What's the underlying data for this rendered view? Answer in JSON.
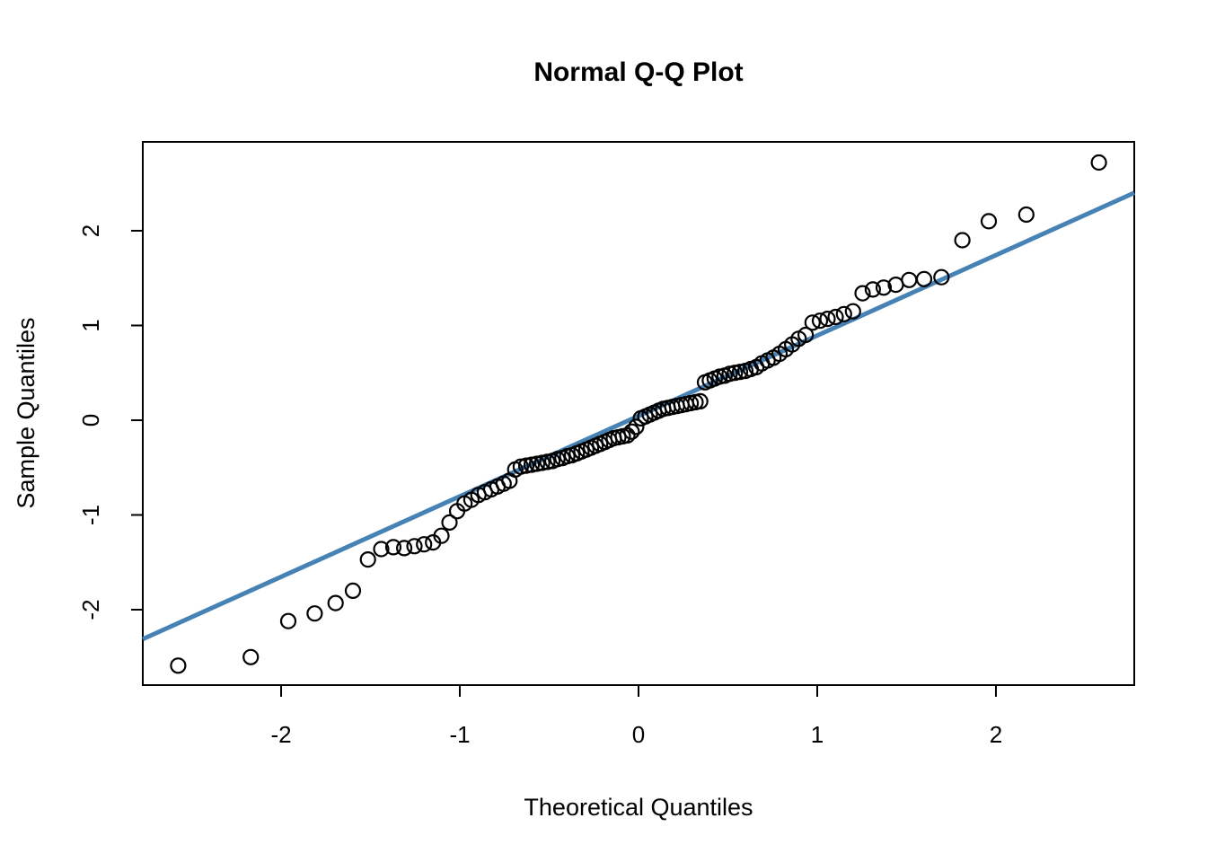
{
  "figure": {
    "title": "Normal Q-Q Plot",
    "x_axis": {
      "label": "Theoretical Quantiles",
      "tick_labels": [
        "-2",
        "-1",
        "0",
        "1",
        "2"
      ]
    },
    "y_axis": {
      "label": "Sample Quantiles",
      "tick_labels": [
        "-2",
        "-1",
        "0",
        "1",
        "2"
      ]
    },
    "colors": {
      "background": "#FFFFFF",
      "axis": "#000000",
      "marker_stroke": "#000000",
      "reference_line": "#4682B4"
    }
  },
  "chart_data": {
    "type": "scatter",
    "title": "Normal Q-Q Plot",
    "xlabel": "Theoretical Quantiles",
    "ylabel": "Sample Quantiles",
    "xlim": [
      -2.774,
      2.774
    ],
    "ylim": [
      -2.796,
      2.938
    ],
    "x_ticks": [
      -2,
      -1,
      0,
      1,
      2
    ],
    "y_ticks": [
      -2,
      -1,
      0,
      1,
      2
    ],
    "grid": false,
    "legend": null,
    "marker": "open-circle",
    "n_points": 100,
    "points": [
      [
        -2.576,
        -2.59
      ],
      [
        -2.17,
        -2.5
      ],
      [
        -1.96,
        -2.12
      ],
      [
        -1.812,
        -2.04
      ],
      [
        -1.695,
        -1.93
      ],
      [
        -1.598,
        -1.8
      ],
      [
        -1.514,
        -1.47
      ],
      [
        -1.44,
        -1.36
      ],
      [
        -1.372,
        -1.34
      ],
      [
        -1.311,
        -1.35
      ],
      [
        -1.254,
        -1.33
      ],
      [
        -1.2,
        -1.31
      ],
      [
        -1.15,
        -1.29
      ],
      [
        -1.103,
        -1.22
      ],
      [
        -1.058,
        -1.08
      ],
      [
        -1.015,
        -0.96
      ],
      [
        -0.974,
        -0.88
      ],
      [
        -0.935,
        -0.84
      ],
      [
        -0.896,
        -0.79
      ],
      [
        -0.86,
        -0.76
      ],
      [
        -0.824,
        -0.73
      ],
      [
        -0.789,
        -0.7
      ],
      [
        -0.755,
        -0.67
      ],
      [
        -0.722,
        -0.64
      ],
      [
        -0.69,
        -0.52
      ],
      [
        -0.659,
        -0.49
      ],
      [
        -0.628,
        -0.48
      ],
      [
        -0.598,
        -0.47
      ],
      [
        -0.568,
        -0.46
      ],
      [
        -0.539,
        -0.45
      ],
      [
        -0.51,
        -0.44
      ],
      [
        -0.482,
        -0.43
      ],
      [
        -0.454,
        -0.41
      ],
      [
        -0.426,
        -0.4
      ],
      [
        -0.399,
        -0.38
      ],
      [
        -0.372,
        -0.37
      ],
      [
        -0.345,
        -0.35
      ],
      [
        -0.319,
        -0.33
      ],
      [
        -0.292,
        -0.31
      ],
      [
        -0.266,
        -0.29
      ],
      [
        -0.24,
        -0.27
      ],
      [
        -0.215,
        -0.25
      ],
      [
        -0.189,
        -0.23
      ],
      [
        -0.164,
        -0.21
      ],
      [
        -0.138,
        -0.19
      ],
      [
        -0.113,
        -0.18
      ],
      [
        -0.088,
        -0.17
      ],
      [
        -0.063,
        -0.16
      ],
      [
        -0.038,
        -0.12
      ],
      [
        -0.013,
        -0.07
      ],
      [
        0.013,
        0.02
      ],
      [
        0.038,
        0.04
      ],
      [
        0.063,
        0.06
      ],
      [
        0.088,
        0.08
      ],
      [
        0.113,
        0.1
      ],
      [
        0.138,
        0.12
      ],
      [
        0.164,
        0.13
      ],
      [
        0.189,
        0.14
      ],
      [
        0.215,
        0.15
      ],
      [
        0.24,
        0.16
      ],
      [
        0.266,
        0.17
      ],
      [
        0.292,
        0.18
      ],
      [
        0.319,
        0.19
      ],
      [
        0.345,
        0.2
      ],
      [
        0.372,
        0.4
      ],
      [
        0.399,
        0.42
      ],
      [
        0.426,
        0.44
      ],
      [
        0.454,
        0.46
      ],
      [
        0.482,
        0.47
      ],
      [
        0.51,
        0.49
      ],
      [
        0.539,
        0.5
      ],
      [
        0.568,
        0.51
      ],
      [
        0.598,
        0.52
      ],
      [
        0.628,
        0.54
      ],
      [
        0.659,
        0.56
      ],
      [
        0.69,
        0.6
      ],
      [
        0.722,
        0.63
      ],
      [
        0.755,
        0.66
      ],
      [
        0.789,
        0.7
      ],
      [
        0.824,
        0.75
      ],
      [
        0.86,
        0.8
      ],
      [
        0.896,
        0.86
      ],
      [
        0.935,
        0.9
      ],
      [
        0.974,
        1.03
      ],
      [
        1.015,
        1.05
      ],
      [
        1.058,
        1.07
      ],
      [
        1.103,
        1.09
      ],
      [
        1.15,
        1.12
      ],
      [
        1.2,
        1.15
      ],
      [
        1.254,
        1.34
      ],
      [
        1.311,
        1.38
      ],
      [
        1.372,
        1.4
      ],
      [
        1.44,
        1.43
      ],
      [
        1.514,
        1.48
      ],
      [
        1.598,
        1.49
      ],
      [
        1.695,
        1.51
      ],
      [
        1.812,
        1.9
      ],
      [
        1.96,
        2.1
      ],
      [
        2.17,
        2.17
      ],
      [
        2.576,
        2.72
      ]
    ],
    "qq_line": {
      "slope": 0.849,
      "intercept": 0.045,
      "color": "#4682B4",
      "width": 5
    }
  }
}
